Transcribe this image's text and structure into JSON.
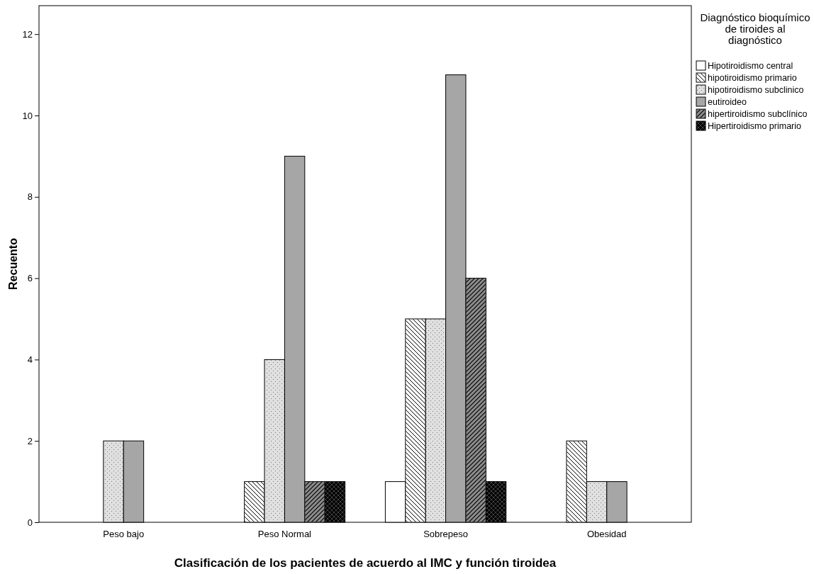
{
  "chart_data": {
    "type": "bar",
    "xlabel": "Clasificación de los pacientes de acuerdo al IMC y función tiroidea",
    "ylabel": "Recuento",
    "legend_title": "Diagnóstico bioquímico de tiroides al diagnóstico",
    "legend": "top right",
    "grid": false,
    "categories": [
      "Peso bajo",
      "Peso Normal",
      "Sobrepeso",
      "Obesidad"
    ],
    "ylim": [
      0,
      12.7
    ],
    "yticks": [
      0,
      2,
      4,
      6,
      8,
      10,
      12
    ],
    "series": [
      {
        "name": "Hipotiroidismo central",
        "color": "#ffffff",
        "values": [
          null,
          null,
          1,
          null
        ]
      },
      {
        "name": "hipotiroidismo primario",
        "color": "#ffffff",
        "values": [
          null,
          1,
          5,
          2
        ]
      },
      {
        "name": "hipotiroidismo subclinico",
        "color": "#e0e0e0",
        "values": [
          2,
          4,
          5,
          1
        ]
      },
      {
        "name": "eutiroideo",
        "color": "#a6a6a6",
        "values": [
          2,
          9,
          11,
          1
        ]
      },
      {
        "name": "hipertiroidismo subclínico",
        "color": "#8c8c8c",
        "values": [
          null,
          1,
          6,
          null
        ]
      },
      {
        "name": "Hipertiroidismo primario",
        "color": "#000000",
        "values": [
          null,
          1,
          1,
          null
        ]
      }
    ]
  }
}
